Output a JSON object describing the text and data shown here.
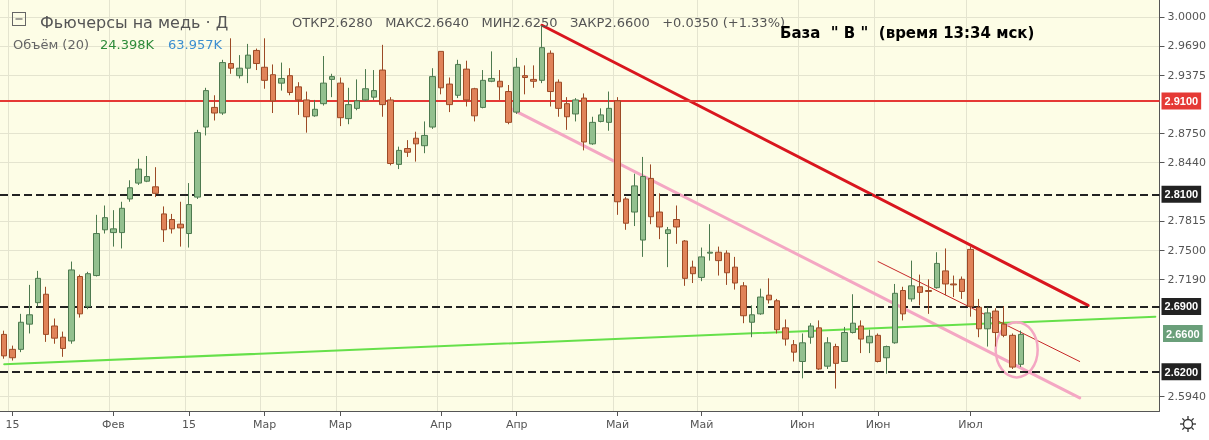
{
  "chart_data": {
    "type": "candlestick",
    "title": "Фьючерсы на медь · Д",
    "subtitle": "ОТКР2.6280   МАКС2.6640   МИН2.6250   ЗАКР2.6600   +0.0350 (+1.33%)",
    "annotations": [
      "Объём (20)",
      "24.398K",
      "63.957K",
      "База  \" В \"  (время 13:34 мск)",
      "2.6600"
    ],
    "categories": [
      null,
      "15",
      null,
      null,
      null,
      null,
      null,
      null,
      null,
      null,
      null,
      null,
      null,
      "Фев",
      null,
      null,
      null,
      null,
      null,
      null,
      null,
      null,
      "15",
      null,
      null,
      null,
      null,
      null,
      null,
      null,
      null,
      "Мар",
      null,
      null,
      null,
      null,
      null,
      null,
      null,
      null,
      "Мар",
      null,
      null,
      null,
      null,
      null,
      null,
      null,
      null,
      null,
      null,
      null,
      "Апр",
      null,
      null,
      null,
      null,
      null,
      null,
      null,
      null,
      "Апр",
      null,
      null,
      null,
      null,
      null,
      null,
      null,
      null,
      null,
      null,
      null,
      "Май",
      null,
      null,
      null,
      null,
      null,
      null,
      null,
      null,
      null,
      "Май",
      null,
      null,
      null,
      null,
      null,
      null,
      null,
      null,
      null,
      null,
      null,
      "Июн",
      null,
      null,
      null,
      null,
      null,
      null,
      null,
      null,
      "Июн",
      null,
      null,
      null,
      null,
      null,
      null,
      null,
      null,
      null,
      null,
      "Июл",
      null,
      null,
      null,
      null,
      null,
      null,
      null,
      null,
      null,
      null,
      null,
      null,
      null,
      null,
      null,
      null,
      null,
      null,
      null,
      null,
      null,
      null
    ],
    "ohlc": [
      [
        2.66,
        2.664,
        2.634,
        2.637
      ],
      [
        2.644,
        2.648,
        2.632,
        2.635
      ],
      [
        2.644,
        2.682,
        2.641,
        2.673
      ],
      [
        2.671,
        2.713,
        2.661,
        2.681
      ],
      [
        2.694,
        2.728,
        2.69,
        2.72
      ],
      [
        2.703,
        2.711,
        2.652,
        2.66
      ],
      [
        2.669,
        2.677,
        2.65,
        2.656
      ],
      [
        2.657,
        2.663,
        2.636,
        2.645
      ],
      [
        2.653,
        2.738,
        2.65,
        2.729
      ],
      [
        2.722,
        2.724,
        2.678,
        2.682
      ],
      [
        2.69,
        2.727,
        2.687,
        2.725
      ],
      [
        2.723,
        2.788,
        2.722,
        2.768
      ],
      [
        2.772,
        2.798,
        2.768,
        2.785
      ],
      [
        2.769,
        2.793,
        2.754,
        2.773
      ],
      [
        2.769,
        2.802,
        2.752,
        2.795
      ],
      [
        2.805,
        2.825,
        2.802,
        2.817
      ],
      [
        2.822,
        2.848,
        2.82,
        2.837
      ],
      [
        2.824,
        2.851,
        2.823,
        2.829
      ],
      [
        2.818,
        2.839,
        2.807,
        2.811
      ],
      [
        2.789,
        2.797,
        2.759,
        2.772
      ],
      [
        2.783,
        2.789,
        2.768,
        2.773
      ],
      [
        2.778,
        2.802,
        2.754,
        2.774
      ],
      [
        2.768,
        2.822,
        2.753,
        2.799
      ],
      [
        2.807,
        2.879,
        2.805,
        2.876
      ],
      [
        2.882,
        2.924,
        2.873,
        2.921
      ],
      [
        2.903,
        2.916,
        2.889,
        2.897
      ],
      [
        2.897,
        2.954,
        2.895,
        2.951
      ],
      [
        2.95,
        2.977,
        2.939,
        2.945
      ],
      [
        2.937,
        2.959,
        2.934,
        2.945
      ],
      [
        2.945,
        2.971,
        2.929,
        2.959
      ],
      [
        2.964,
        2.966,
        2.943,
        2.95
      ],
      [
        2.946,
        2.977,
        2.923,
        2.932
      ],
      [
        2.938,
        2.949,
        2.897,
        2.91
      ],
      [
        2.929,
        2.951,
        2.921,
        2.934
      ],
      [
        2.937,
        2.945,
        2.916,
        2.919
      ],
      [
        2.925,
        2.93,
        2.895,
        2.911
      ],
      [
        2.911,
        2.92,
        2.876,
        2.893
      ],
      [
        2.894,
        2.911,
        2.893,
        2.901
      ],
      [
        2.907,
        2.958,
        2.905,
        2.929
      ],
      [
        2.933,
        2.939,
        2.914,
        2.936
      ],
      [
        2.929,
        2.935,
        2.883,
        2.892
      ],
      [
        2.891,
        2.924,
        2.885,
        2.906
      ],
      [
        2.902,
        2.933,
        2.9,
        2.91
      ],
      [
        2.911,
        2.944,
        2.91,
        2.923
      ],
      [
        2.914,
        2.943,
        2.911,
        2.921
      ],
      [
        2.943,
        2.97,
        2.893,
        2.906
      ],
      [
        2.911,
        2.914,
        2.841,
        2.843
      ],
      [
        2.842,
        2.861,
        2.837,
        2.857
      ],
      [
        2.859,
        2.868,
        2.85,
        2.855
      ],
      [
        2.87,
        2.877,
        2.845,
        2.864
      ],
      [
        2.862,
        2.888,
        2.854,
        2.873
      ],
      [
        2.882,
        2.945,
        2.88,
        2.936
      ],
      [
        2.963,
        2.963,
        2.917,
        2.924
      ],
      [
        2.928,
        2.935,
        2.898,
        2.906
      ],
      [
        2.916,
        2.954,
        2.913,
        2.949
      ],
      [
        2.944,
        2.953,
        2.904,
        2.911
      ],
      [
        2.923,
        2.924,
        2.888,
        2.894
      ],
      [
        2.903,
        2.943,
        2.902,
        2.932
      ],
      [
        2.931,
        2.963,
        2.93,
        2.934
      ],
      [
        2.931,
        2.943,
        2.911,
        2.925
      ],
      [
        2.92,
        2.927,
        2.885,
        2.887
      ],
      [
        2.898,
        2.956,
        2.896,
        2.946
      ],
      [
        2.937,
        2.948,
        2.917,
        2.935
      ],
      [
        2.933,
        2.948,
        2.924,
        2.931
      ],
      [
        2.932,
        2.991,
        2.929,
        2.967
      ],
      [
        2.961,
        2.964,
        2.904,
        2.92
      ],
      [
        2.93,
        2.933,
        2.893,
        2.902
      ],
      [
        2.907,
        2.914,
        2.879,
        2.893
      ],
      [
        2.896,
        2.913,
        2.888,
        2.911
      ],
      [
        2.913,
        2.918,
        2.857,
        2.866
      ],
      [
        2.864,
        2.893,
        2.863,
        2.887
      ],
      [
        2.888,
        2.902,
        2.887,
        2.895
      ],
      [
        2.887,
        2.92,
        2.878,
        2.902
      ],
      [
        2.91,
        2.914,
        2.788,
        2.802
      ],
      [
        2.805,
        2.807,
        2.772,
        2.779
      ],
      [
        2.791,
        2.832,
        2.776,
        2.819
      ],
      [
        2.761,
        2.85,
        2.743,
        2.829
      ],
      [
        2.827,
        2.842,
        2.778,
        2.786
      ],
      [
        2.791,
        2.811,
        2.762,
        2.775
      ],
      [
        2.768,
        2.775,
        2.732,
        2.772
      ],
      [
        2.783,
        2.798,
        2.757,
        2.775
      ],
      [
        2.76,
        2.761,
        2.712,
        2.72
      ],
      [
        2.732,
        2.739,
        2.715,
        2.725
      ],
      [
        2.721,
        2.753,
        2.717,
        2.743
      ],
      [
        2.747,
        2.778,
        2.739,
        2.748
      ],
      [
        2.748,
        2.754,
        2.723,
        2.739
      ],
      [
        2.747,
        2.75,
        2.713,
        2.726
      ],
      [
        2.732,
        2.743,
        2.708,
        2.715
      ],
      [
        2.712,
        2.716,
        2.672,
        2.68
      ],
      [
        2.673,
        2.691,
        2.657,
        2.681
      ],
      [
        2.682,
        2.709,
        2.681,
        2.7
      ],
      [
        2.702,
        2.72,
        2.693,
        2.697
      ],
      [
        2.696,
        2.698,
        2.661,
        2.665
      ],
      [
        2.667,
        2.676,
        2.648,
        2.655
      ],
      [
        2.649,
        2.654,
        2.631,
        2.641
      ],
      [
        2.631,
        2.661,
        2.613,
        2.651
      ],
      [
        2.657,
        2.672,
        2.65,
        2.669
      ],
      [
        2.667,
        2.675,
        2.622,
        2.623
      ],
      [
        2.626,
        2.657,
        2.623,
        2.651
      ],
      [
        2.647,
        2.65,
        2.602,
        2.629
      ],
      [
        2.631,
        2.668,
        2.631,
        2.662
      ],
      [
        2.662,
        2.703,
        2.661,
        2.672
      ],
      [
        2.669,
        2.675,
        2.64,
        2.655
      ],
      [
        2.651,
        2.665,
        2.64,
        2.658
      ],
      [
        2.659,
        2.661,
        2.63,
        2.631
      ],
      [
        2.635,
        2.648,
        2.618,
        2.647
      ],
      [
        2.651,
        2.714,
        2.65,
        2.704
      ],
      [
        2.707,
        2.711,
        2.675,
        2.682
      ],
      [
        2.698,
        2.739,
        2.695,
        2.712
      ],
      [
        2.711,
        2.724,
        2.691,
        2.705
      ],
      [
        2.707,
        2.719,
        2.682,
        2.706
      ],
      [
        2.71,
        2.748,
        2.709,
        2.736
      ],
      [
        2.728,
        2.752,
        2.702,
        2.714
      ],
      [
        2.714,
        2.723,
        2.7,
        2.713
      ],
      [
        2.719,
        2.722,
        2.698,
        2.706
      ],
      [
        2.751,
        2.754,
        2.679,
        2.69
      ],
      [
        2.689,
        2.698,
        2.657,
        2.666
      ],
      [
        2.666,
        2.689,
        2.647,
        2.683
      ],
      [
        2.685,
        2.688,
        2.647,
        2.662
      ],
      [
        2.671,
        2.69,
        2.657,
        2.659
      ],
      [
        2.659,
        2.661,
        2.623,
        2.625
      ],
      [
        2.628,
        2.664,
        2.625,
        2.66
      ],
      null,
      null,
      null,
      null,
      null,
      null,
      null,
      null,
      null,
      null,
      null,
      null,
      null,
      null,
      null,
      null
    ],
    "series": [
      {
        "type": "line",
        "color": "#d9161e",
        "line_style": "solid",
        "values": [
          null,
          null,
          null,
          null,
          null,
          null,
          null,
          null,
          null,
          null,
          null,
          null,
          null,
          null,
          null,
          null,
          null,
          null,
          null,
          null,
          null,
          null,
          null,
          null,
          null,
          null,
          null,
          null,
          null,
          null,
          null,
          null,
          null,
          null,
          null,
          null,
          null,
          null,
          null,
          null,
          null,
          null,
          null,
          null,
          null,
          null,
          null,
          null,
          null,
          null,
          null,
          null,
          null,
          null,
          null,
          null,
          null,
          null,
          null,
          null,
          null,
          null,
          null,
          null,
          2.991,
          null,
          null,
          null,
          null,
          null,
          null,
          null,
          null,
          null,
          null,
          null,
          null,
          null,
          null,
          null,
          null,
          null,
          null,
          null,
          null,
          null,
          null,
          null,
          null,
          null,
          null,
          null,
          null,
          null,
          null,
          null,
          null,
          null,
          null,
          null,
          null,
          null,
          null,
          null,
          null,
          null,
          null,
          null,
          null,
          null,
          null,
          null,
          null,
          null,
          null,
          null,
          null,
          null,
          null,
          null,
          null,
          null,
          null,
          null,
          null,
          null,
          null,
          null,
          null,
          2.691,
          null,
          null,
          null,
          null,
          null,
          null,
          null,
          null
        ]
      },
      {
        "type": "line",
        "color": "#f4a7c3",
        "line_style": "solid",
        "values": [
          null,
          null,
          null,
          null,
          null,
          null,
          null,
          null,
          null,
          null,
          null,
          null,
          null,
          null,
          null,
          null,
          null,
          null,
          null,
          null,
          null,
          null,
          null,
          null,
          null,
          null,
          null,
          null,
          null,
          null,
          null,
          null,
          null,
          null,
          null,
          null,
          null,
          null,
          null,
          null,
          null,
          null,
          null,
          null,
          null,
          null,
          null,
          null,
          null,
          null,
          null,
          null,
          null,
          null,
          null,
          null,
          null,
          null,
          null,
          null,
          2.903,
          null,
          null,
          null,
          null,
          null,
          null,
          null,
          null,
          null,
          null,
          null,
          null,
          null,
          null,
          null,
          null,
          null,
          null,
          null,
          null,
          null,
          null,
          null,
          null,
          null,
          null,
          null,
          null,
          null,
          null,
          null,
          null,
          null,
          null,
          null,
          null,
          null,
          null,
          null,
          null,
          null,
          null,
          null,
          null,
          null,
          null,
          null,
          null,
          null,
          null,
          null,
          null,
          null,
          null,
          null,
          null,
          null,
          null,
          null,
          null,
          null,
          null,
          null,
          null,
          null,
          null,
          null,
          2.592,
          null,
          null,
          null,
          null,
          null,
          null,
          null,
          null,
          null
        ]
      },
      {
        "type": "line",
        "color": "#66e04a",
        "line_style": "solid",
        "values": [
          2.628,
          null,
          null,
          null,
          null,
          null,
          null,
          null,
          null,
          null,
          null,
          null,
          null,
          null,
          null,
          null,
          null,
          null,
          null,
          null,
          null,
          null,
          null,
          null,
          null,
          null,
          null,
          null,
          null,
          null,
          null,
          null,
          null,
          null,
          null,
          null,
          null,
          null,
          null,
          null,
          null,
          null,
          null,
          null,
          null,
          null,
          null,
          null,
          null,
          null,
          null,
          null,
          null,
          null,
          null,
          null,
          null,
          null,
          null,
          null,
          null,
          null,
          null,
          null,
          null,
          null,
          null,
          null,
          null,
          null,
          null,
          null,
          null,
          null,
          null,
          null,
          null,
          null,
          null,
          null,
          null,
          null,
          null,
          null,
          null,
          null,
          null,
          null,
          null,
          null,
          null,
          null,
          null,
          null,
          null,
          null,
          null,
          null,
          null,
          null,
          null,
          null,
          null,
          null,
          null,
          null,
          null,
          null,
          null,
          null,
          null,
          null,
          null,
          null,
          null,
          null,
          null,
          null,
          null,
          null,
          null,
          null,
          null,
          null,
          null,
          null,
          null,
          null,
          null,
          null,
          null,
          null,
          null,
          null,
          null,
          null,
          null,
          2.679
        ]
      },
      {
        "type": "line",
        "color": "#c62828",
        "line_style": "solid",
        "values": [
          null,
          null,
          null,
          null,
          null,
          null,
          null,
          null,
          null,
          null,
          null,
          null,
          null,
          null,
          null,
          null,
          null,
          null,
          null,
          null,
          null,
          null,
          null,
          null,
          null,
          null,
          null,
          null,
          null,
          null,
          null,
          null,
          null,
          null,
          null,
          null,
          null,
          null,
          null,
          null,
          null,
          null,
          null,
          null,
          null,
          null,
          null,
          null,
          null,
          null,
          null,
          null,
          null,
          null,
          null,
          null,
          null,
          null,
          null,
          null,
          null,
          null,
          null,
          null,
          null,
          null,
          null,
          null,
          null,
          null,
          null,
          null,
          null,
          null,
          null,
          null,
          null,
          null,
          null,
          null,
          null,
          null,
          null,
          null,
          null,
          null,
          null,
          null,
          null,
          null,
          null,
          null,
          null,
          null,
          null,
          null,
          null,
          null,
          null,
          null,
          null,
          null,
          null,
          null,
          2.738,
          null,
          null,
          null,
          null,
          null,
          null,
          null,
          null,
          null,
          null,
          null,
          null,
          null,
          null,
          null,
          null,
          null,
          null,
          null,
          null,
          null,
          null,
          null,
          2.631,
          null,
          null,
          null,
          null,
          null,
          null,
          null,
          null,
          null
        ]
      }
    ],
    "ref_lines": [
      {
        "axis": "y",
        "value": 2.91,
        "label": "2.9100",
        "color": "#e53935",
        "line_style": "solid"
      },
      {
        "axis": "y",
        "value": 2.81,
        "label": "2.8100",
        "color": "#222222",
        "line_style": "dashed"
      },
      {
        "axis": "y",
        "value": 2.69,
        "label": "2.6900",
        "color": "#222222",
        "line_style": "dashed"
      },
      {
        "axis": "y",
        "value": 2.62,
        "label": "2.6200",
        "color": "#222222",
        "line_style": "dashed"
      }
    ],
    "ylim": [
      2.578,
      3.018
    ],
    "yticks": [
      {
        "value": 3.0,
        "label": "3.0000"
      },
      {
        "value": 2.969,
        "label": "2.9690"
      },
      {
        "value": 2.9375,
        "label": "2.9375"
      },
      {
        "value": 2.875,
        "label": "2.8750"
      },
      {
        "value": 2.844,
        "label": "2.8440"
      },
      {
        "value": 2.7815,
        "label": "2.7815"
      },
      {
        "value": 2.75,
        "label": "2.7500"
      },
      {
        "value": 2.719,
        "label": "2.7190"
      },
      {
        "value": 2.594,
        "label": "2.5940"
      }
    ],
    "grid": true
  }
}
